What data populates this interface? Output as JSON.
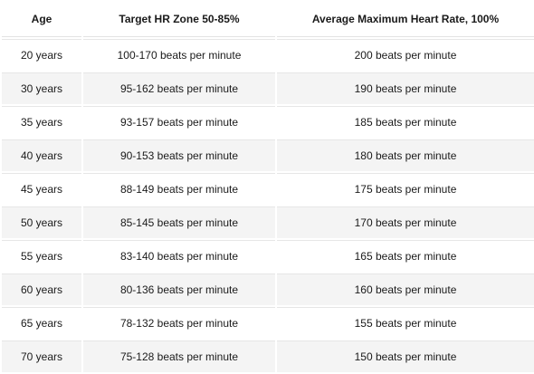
{
  "table": {
    "headers": {
      "age": "Age",
      "zone": "Target HR Zone 50-85%",
      "max": "Average Maximum Heart Rate, 100%"
    },
    "rows": [
      {
        "age": "20 years",
        "zone": "100-170 beats per minute",
        "max": "200 beats per minute"
      },
      {
        "age": "30 years",
        "zone": "95-162 beats per minute",
        "max": "190 beats per minute"
      },
      {
        "age": "35 years",
        "zone": "93-157 beats per minute",
        "max": "185 beats per minute"
      },
      {
        "age": "40 years",
        "zone": "90-153 beats per minute",
        "max": "180 beats per minute"
      },
      {
        "age": "45 years",
        "zone": "88-149 beats per minute",
        "max": "175 beats per minute"
      },
      {
        "age": "50 years",
        "zone": "85-145 beats per minute",
        "max": "170 beats per minute"
      },
      {
        "age": "55 years",
        "zone": "83-140 beats per minute",
        "max": "165 beats per minute"
      },
      {
        "age": "60 years",
        "zone": "80-136 beats per minute",
        "max": "160 beats per minute"
      },
      {
        "age": "65 years",
        "zone": "78-132 beats per minute",
        "max": "155 beats per minute"
      },
      {
        "age": "70 years",
        "zone": "75-128 beats per minute",
        "max": "150 beats per minute"
      }
    ]
  }
}
